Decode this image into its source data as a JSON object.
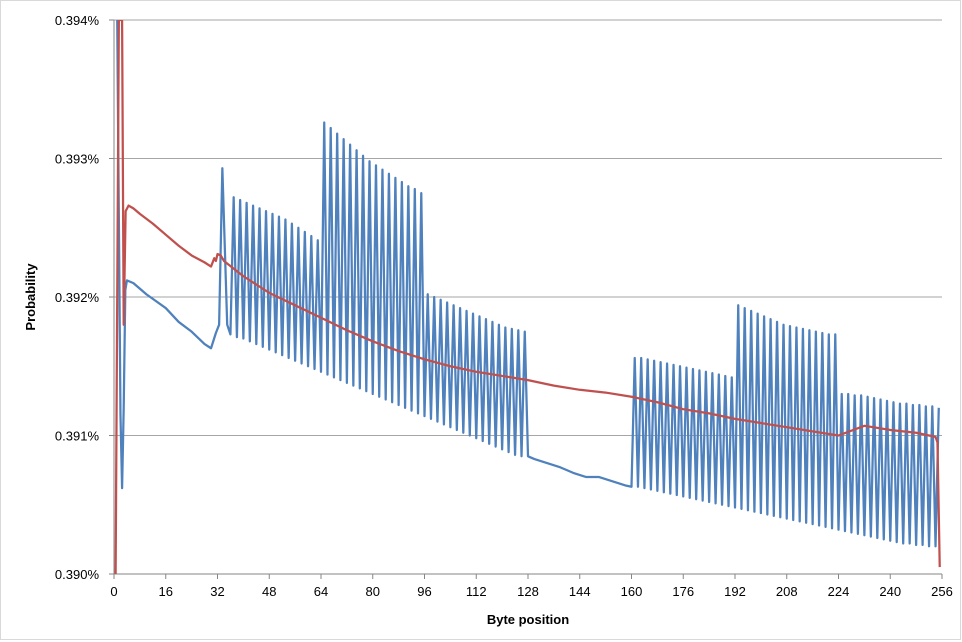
{
  "chart_data": {
    "type": "line",
    "title": "",
    "xlabel": "Byte position",
    "ylabel": "Probability",
    "xlim": [
      0,
      256
    ],
    "ylim": [
      0.39,
      0.394
    ],
    "x_ticks": [
      0,
      16,
      32,
      48,
      64,
      80,
      96,
      112,
      128,
      144,
      160,
      176,
      192,
      208,
      224,
      240,
      256
    ],
    "y_ticks": [
      0.39,
      0.391,
      0.392,
      0.393,
      0.394
    ],
    "x_tick_labels": [
      "0",
      "16",
      "32",
      "48",
      "64",
      "80",
      "96",
      "112",
      "128",
      "144",
      "160",
      "176",
      "192",
      "208",
      "224",
      "240",
      "256"
    ],
    "y_tick_labels": [
      "0.390%",
      "0.391%",
      "0.392%",
      "0.393%",
      "0.394%"
    ],
    "grid": "horizontal",
    "legend": "none",
    "colors": {
      "blue": "#4f81bd",
      "red": "#c0504d",
      "grid": "#a6a6a6",
      "axis": "#868686"
    },
    "series": [
      {
        "color": "#4f81bd",
        "points": [
          [
            1,
            0.394
          ],
          [
            2,
            0.39115
          ],
          [
            2.5,
            0.39062
          ],
          [
            3,
            0.3912
          ],
          [
            3.5,
            0.39205
          ],
          [
            4,
            0.39212
          ],
          [
            6,
            0.3921
          ],
          [
            10,
            0.39202
          ],
          [
            16,
            0.39192
          ],
          [
            20,
            0.39182
          ],
          [
            24,
            0.39175
          ],
          [
            28,
            0.39166
          ],
          [
            30,
            0.39163
          ],
          [
            31.5,
            0.39174
          ],
          [
            32.5,
            0.3918
          ],
          [
            33.5,
            0.39293
          ],
          [
            35,
            0.3918
          ],
          [
            36,
            0.39173
          ],
          [
            37,
            0.39272
          ],
          [
            38,
            0.39171
          ],
          [
            39,
            0.3927
          ],
          [
            40,
            0.3917
          ],
          [
            41,
            0.39268
          ],
          [
            42,
            0.39168
          ],
          [
            43,
            0.39266
          ],
          [
            44,
            0.39166
          ],
          [
            45,
            0.39264
          ],
          [
            46,
            0.39164
          ],
          [
            47,
            0.39262
          ],
          [
            48,
            0.39162
          ],
          [
            49,
            0.3926
          ],
          [
            50,
            0.3916
          ],
          [
            51,
            0.39258
          ],
          [
            52,
            0.39158
          ],
          [
            53,
            0.39256
          ],
          [
            54,
            0.39156
          ],
          [
            55,
            0.39253
          ],
          [
            56,
            0.39154
          ],
          [
            57,
            0.3925
          ],
          [
            58,
            0.39152
          ],
          [
            59,
            0.39247
          ],
          [
            60,
            0.3915
          ],
          [
            61,
            0.39244
          ],
          [
            62,
            0.39148
          ],
          [
            63,
            0.39241
          ],
          [
            64,
            0.39146
          ],
          [
            65,
            0.39326
          ],
          [
            66,
            0.39144
          ],
          [
            67,
            0.39322
          ],
          [
            68,
            0.39142
          ],
          [
            69,
            0.39318
          ],
          [
            70,
            0.3914
          ],
          [
            71,
            0.39314
          ],
          [
            72,
            0.39138
          ],
          [
            73,
            0.3931
          ],
          [
            74,
            0.39136
          ],
          [
            75,
            0.39306
          ],
          [
            76,
            0.39134
          ],
          [
            77,
            0.39302
          ],
          [
            78,
            0.39132
          ],
          [
            79,
            0.39298
          ],
          [
            80,
            0.3913
          ],
          [
            81,
            0.39295
          ],
          [
            82,
            0.39128
          ],
          [
            83,
            0.39292
          ],
          [
            84,
            0.39126
          ],
          [
            85,
            0.39289
          ],
          [
            86,
            0.39124
          ],
          [
            87,
            0.39286
          ],
          [
            88,
            0.39122
          ],
          [
            89,
            0.39283
          ],
          [
            90,
            0.3912
          ],
          [
            91,
            0.3928
          ],
          [
            92,
            0.39118
          ],
          [
            93,
            0.39278
          ],
          [
            94,
            0.39116
          ],
          [
            95,
            0.39275
          ],
          [
            96,
            0.39114
          ],
          [
            97,
            0.39202
          ],
          [
            98,
            0.39112
          ],
          [
            99,
            0.392
          ],
          [
            100,
            0.3911
          ],
          [
            101,
            0.39198
          ],
          [
            102,
            0.39108
          ],
          [
            103,
            0.39196
          ],
          [
            104,
            0.39106
          ],
          [
            105,
            0.39194
          ],
          [
            106,
            0.39104
          ],
          [
            107,
            0.39192
          ],
          [
            108,
            0.39102
          ],
          [
            109,
            0.3919
          ],
          [
            110,
            0.391
          ],
          [
            111,
            0.39188
          ],
          [
            112,
            0.39098
          ],
          [
            113,
            0.39186
          ],
          [
            114,
            0.39096
          ],
          [
            115,
            0.39184
          ],
          [
            116,
            0.39094
          ],
          [
            117,
            0.39182
          ],
          [
            118,
            0.39092
          ],
          [
            119,
            0.3918
          ],
          [
            120,
            0.3909
          ],
          [
            121,
            0.39178
          ],
          [
            122,
            0.39088
          ],
          [
            123,
            0.39177
          ],
          [
            124,
            0.39086
          ],
          [
            125,
            0.39176
          ],
          [
            126,
            0.39085
          ],
          [
            127,
            0.39175
          ],
          [
            128,
            0.39085
          ],
          [
            130,
            0.39083
          ],
          [
            134,
            0.3908
          ],
          [
            138,
            0.39077
          ],
          [
            142,
            0.39073
          ],
          [
            146,
            0.3907
          ],
          [
            150,
            0.3907
          ],
          [
            154,
            0.39067
          ],
          [
            158,
            0.39064
          ],
          [
            160,
            0.39063
          ],
          [
            161,
            0.39156
          ],
          [
            162,
            0.39063
          ],
          [
            163,
            0.39156
          ],
          [
            164,
            0.39062
          ],
          [
            165,
            0.39155
          ],
          [
            166,
            0.39061
          ],
          [
            167,
            0.39154
          ],
          [
            168,
            0.3906
          ],
          [
            169,
            0.39153
          ],
          [
            170,
            0.39059
          ],
          [
            171,
            0.39152
          ],
          [
            172,
            0.39058
          ],
          [
            173,
            0.39151
          ],
          [
            174,
            0.39057
          ],
          [
            175,
            0.3915
          ],
          [
            176,
            0.39056
          ],
          [
            177,
            0.39149
          ],
          [
            178,
            0.39055
          ],
          [
            179,
            0.39148
          ],
          [
            180,
            0.39054
          ],
          [
            181,
            0.39147
          ],
          [
            182,
            0.39053
          ],
          [
            183,
            0.39146
          ],
          [
            184,
            0.39052
          ],
          [
            185,
            0.39145
          ],
          [
            186,
            0.39051
          ],
          [
            187,
            0.39144
          ],
          [
            188,
            0.3905
          ],
          [
            189,
            0.39143
          ],
          [
            190,
            0.39049
          ],
          [
            191,
            0.39142
          ],
          [
            192,
            0.39048
          ],
          [
            193,
            0.39194
          ],
          [
            194,
            0.39047
          ],
          [
            195,
            0.39192
          ],
          [
            196,
            0.39046
          ],
          [
            197,
            0.3919
          ],
          [
            198,
            0.39045
          ],
          [
            199,
            0.39188
          ],
          [
            200,
            0.39044
          ],
          [
            201,
            0.39186
          ],
          [
            202,
            0.39043
          ],
          [
            203,
            0.39184
          ],
          [
            204,
            0.39042
          ],
          [
            205,
            0.39182
          ],
          [
            206,
            0.39041
          ],
          [
            207,
            0.3918
          ],
          [
            208,
            0.3904
          ],
          [
            209,
            0.39179
          ],
          [
            210,
            0.39039
          ],
          [
            211,
            0.39178
          ],
          [
            212,
            0.39038
          ],
          [
            213,
            0.39177
          ],
          [
            214,
            0.39037
          ],
          [
            215,
            0.39176
          ],
          [
            216,
            0.39036
          ],
          [
            217,
            0.39175
          ],
          [
            218,
            0.39035
          ],
          [
            219,
            0.39174
          ],
          [
            220,
            0.39034
          ],
          [
            221,
            0.39173
          ],
          [
            222,
            0.39033
          ],
          [
            223,
            0.39173
          ],
          [
            224,
            0.39032
          ],
          [
            225,
            0.3913
          ],
          [
            226,
            0.39031
          ],
          [
            227,
            0.3913
          ],
          [
            228,
            0.3903
          ],
          [
            229,
            0.39129
          ],
          [
            230,
            0.39029
          ],
          [
            231,
            0.39129
          ],
          [
            232,
            0.39028
          ],
          [
            233,
            0.39128
          ],
          [
            234,
            0.39027
          ],
          [
            235,
            0.39127
          ],
          [
            236,
            0.39026
          ],
          [
            237,
            0.39126
          ],
          [
            238,
            0.39025
          ],
          [
            239,
            0.39125
          ],
          [
            240,
            0.39024
          ],
          [
            241,
            0.39124
          ],
          [
            242,
            0.39023
          ],
          [
            243,
            0.39123
          ],
          [
            244,
            0.39022
          ],
          [
            245,
            0.39123
          ],
          [
            246,
            0.39022
          ],
          [
            247,
            0.39122
          ],
          [
            248,
            0.39021
          ],
          [
            249,
            0.39122
          ],
          [
            250,
            0.39021
          ],
          [
            251,
            0.39121
          ],
          [
            252,
            0.3902
          ],
          [
            253,
            0.39121
          ],
          [
            254,
            0.3902
          ],
          [
            255,
            0.3912
          ]
        ]
      },
      {
        "color": "#c0504d",
        "points": [
          [
            0.5,
            0.39
          ],
          [
            1.5,
            0.394
          ],
          [
            2.5,
            0.394
          ],
          [
            3,
            0.3918
          ],
          [
            3.6,
            0.39262
          ],
          [
            4.5,
            0.39266
          ],
          [
            6,
            0.39264
          ],
          [
            8,
            0.3926
          ],
          [
            12,
            0.39253
          ],
          [
            16,
            0.39245
          ],
          [
            20,
            0.39237
          ],
          [
            24,
            0.3923
          ],
          [
            28,
            0.39225
          ],
          [
            30,
            0.39222
          ],
          [
            31,
            0.39228
          ],
          [
            31.5,
            0.39226
          ],
          [
            32,
            0.39231
          ],
          [
            33,
            0.3923
          ],
          [
            34,
            0.39226
          ],
          [
            40,
            0.39215
          ],
          [
            48,
            0.39203
          ],
          [
            56,
            0.39194
          ],
          [
            64,
            0.39185
          ],
          [
            72,
            0.39176
          ],
          [
            80,
            0.39168
          ],
          [
            88,
            0.39161
          ],
          [
            96,
            0.39155
          ],
          [
            104,
            0.3915
          ],
          [
            112,
            0.39146
          ],
          [
            120,
            0.39143
          ],
          [
            128,
            0.3914
          ],
          [
            136,
            0.39136
          ],
          [
            144,
            0.39133
          ],
          [
            152,
            0.39131
          ],
          [
            160,
            0.39128
          ],
          [
            168,
            0.39124
          ],
          [
            176,
            0.39119
          ],
          [
            184,
            0.39116
          ],
          [
            192,
            0.39112
          ],
          [
            200,
            0.39109
          ],
          [
            208,
            0.39106
          ],
          [
            216,
            0.39103
          ],
          [
            224,
            0.391
          ],
          [
            232,
            0.39107
          ],
          [
            240,
            0.39104
          ],
          [
            248,
            0.39102
          ],
          [
            254,
            0.39099
          ],
          [
            254.6,
            0.39095
          ],
          [
            255.3,
            0.39005
          ]
        ]
      }
    ]
  }
}
